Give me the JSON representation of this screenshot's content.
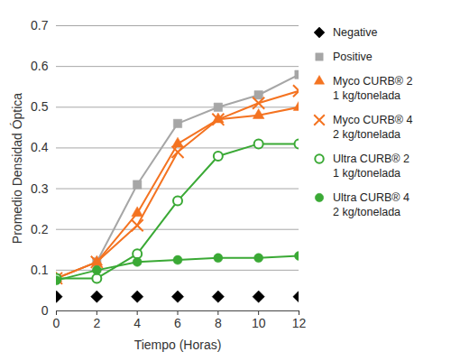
{
  "chart_data": {
    "type": "line",
    "x_label": "Tiempo (Horas)",
    "y_label": "Promedio Densidad Óptica",
    "x": [
      0,
      2,
      4,
      6,
      8,
      10,
      12
    ],
    "xlim": [
      0,
      12
    ],
    "xticks": [
      0,
      2,
      4,
      6,
      8,
      10,
      12
    ],
    "ylim": [
      0,
      0.7
    ],
    "yticks": [
      0,
      0.1,
      0.2,
      0.3,
      0.4,
      0.5,
      0.6,
      0.7
    ],
    "grid": true,
    "legend": "right",
    "series": [
      {
        "name": "Negative",
        "color": "#000000",
        "marker": "diamond",
        "line_style": "none",
        "values": [
          0.035,
          0.035,
          0.035,
          0.035,
          0.035,
          0.035,
          0.035
        ]
      },
      {
        "name": "Positive",
        "color": "#a6a6a6",
        "marker": "square",
        "line_style": "solid",
        "values": [
          0.08,
          0.12,
          0.31,
          0.46,
          0.5,
          0.53,
          0.58
        ]
      },
      {
        "name": "Myco CURB® 2\n1 kg/tonelada",
        "color": "#f47321",
        "marker": "triangle",
        "line_style": "solid",
        "values": [
          0.08,
          0.12,
          0.24,
          0.41,
          0.47,
          0.48,
          0.5
        ]
      },
      {
        "name": "Myco CURB® 4\n2 kg/tonelada",
        "color": "#f47321",
        "marker": "x",
        "line_style": "solid",
        "values": [
          0.08,
          0.12,
          0.21,
          0.39,
          0.47,
          0.51,
          0.54
        ]
      },
      {
        "name": "Ultra CURB® 2\n1 kg/tonelada",
        "color": "#3aa935",
        "marker": "circle-open",
        "line_style": "solid",
        "values": [
          0.08,
          0.08,
          0.14,
          0.27,
          0.38,
          0.41,
          0.41
        ]
      },
      {
        "name": "Ultra CURB® 4\n2 kg/tonelada",
        "color": "#3aa935",
        "marker": "circle",
        "line_style": "solid",
        "values": [
          0.075,
          0.1,
          0.12,
          0.125,
          0.13,
          0.13,
          0.135
        ]
      }
    ]
  }
}
